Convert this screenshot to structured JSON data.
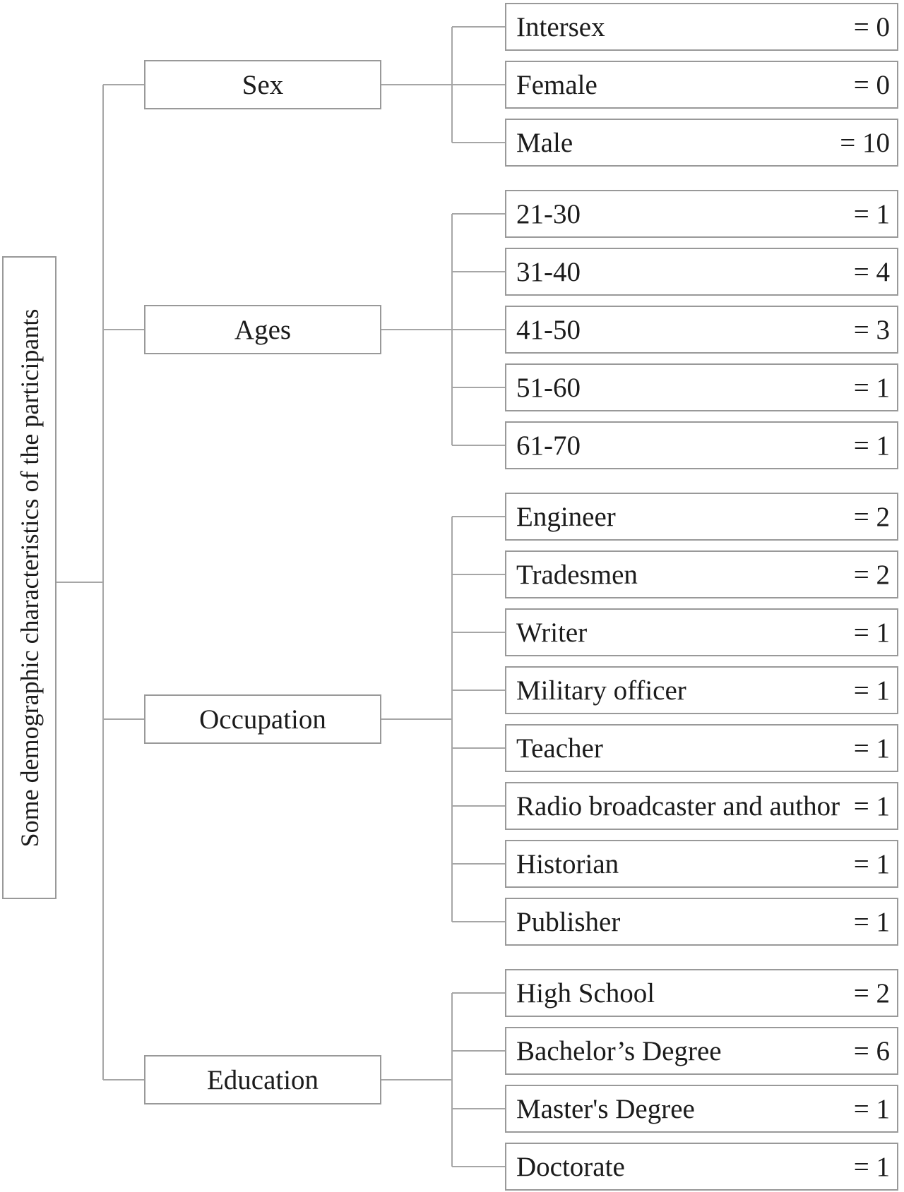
{
  "diagram": {
    "root_label": "Some demographic characteristics of the participants",
    "groups": [
      {
        "label": "Sex",
        "items": [
          {
            "label": "Intersex",
            "value": "= 0"
          },
          {
            "label": "Female",
            "value": "= 0"
          },
          {
            "label": "Male",
            "value": "= 10"
          }
        ]
      },
      {
        "label": "Ages",
        "items": [
          {
            "label": "21-30",
            "value": "= 1"
          },
          {
            "label": "31-40",
            "value": "= 4"
          },
          {
            "label": "41-50",
            "value": "= 3"
          },
          {
            "label": "51-60",
            "value": "= 1"
          },
          {
            "label": "61-70",
            "value": "= 1"
          }
        ]
      },
      {
        "label": "Occupation",
        "items": [
          {
            "label": "Engineer",
            "value": "= 2"
          },
          {
            "label": "Tradesmen",
            "value": "= 2"
          },
          {
            "label": "Writer",
            "value": "= 1"
          },
          {
            "label": "Military officer",
            "value": "= 1"
          },
          {
            "label": "Teacher",
            "value": "= 1"
          },
          {
            "label": "Radio broadcaster and author",
            "value": "= 1"
          },
          {
            "label": "Historian",
            "value": "= 1"
          },
          {
            "label": "Publisher",
            "value": "= 1"
          }
        ]
      },
      {
        "label": "Education",
        "items": [
          {
            "label": "High School",
            "value": "= 2"
          },
          {
            "label": "Bachelor’s Degree",
            "value": "= 6"
          },
          {
            "label": "Master's Degree",
            "value": "= 1"
          },
          {
            "label": "Doctorate",
            "value": "= 1"
          }
        ]
      }
    ]
  },
  "colors": {
    "background": "#ffffff",
    "box_border": "#999999",
    "connector_line": "#a6a6a6",
    "text": "#1b1b1b"
  }
}
